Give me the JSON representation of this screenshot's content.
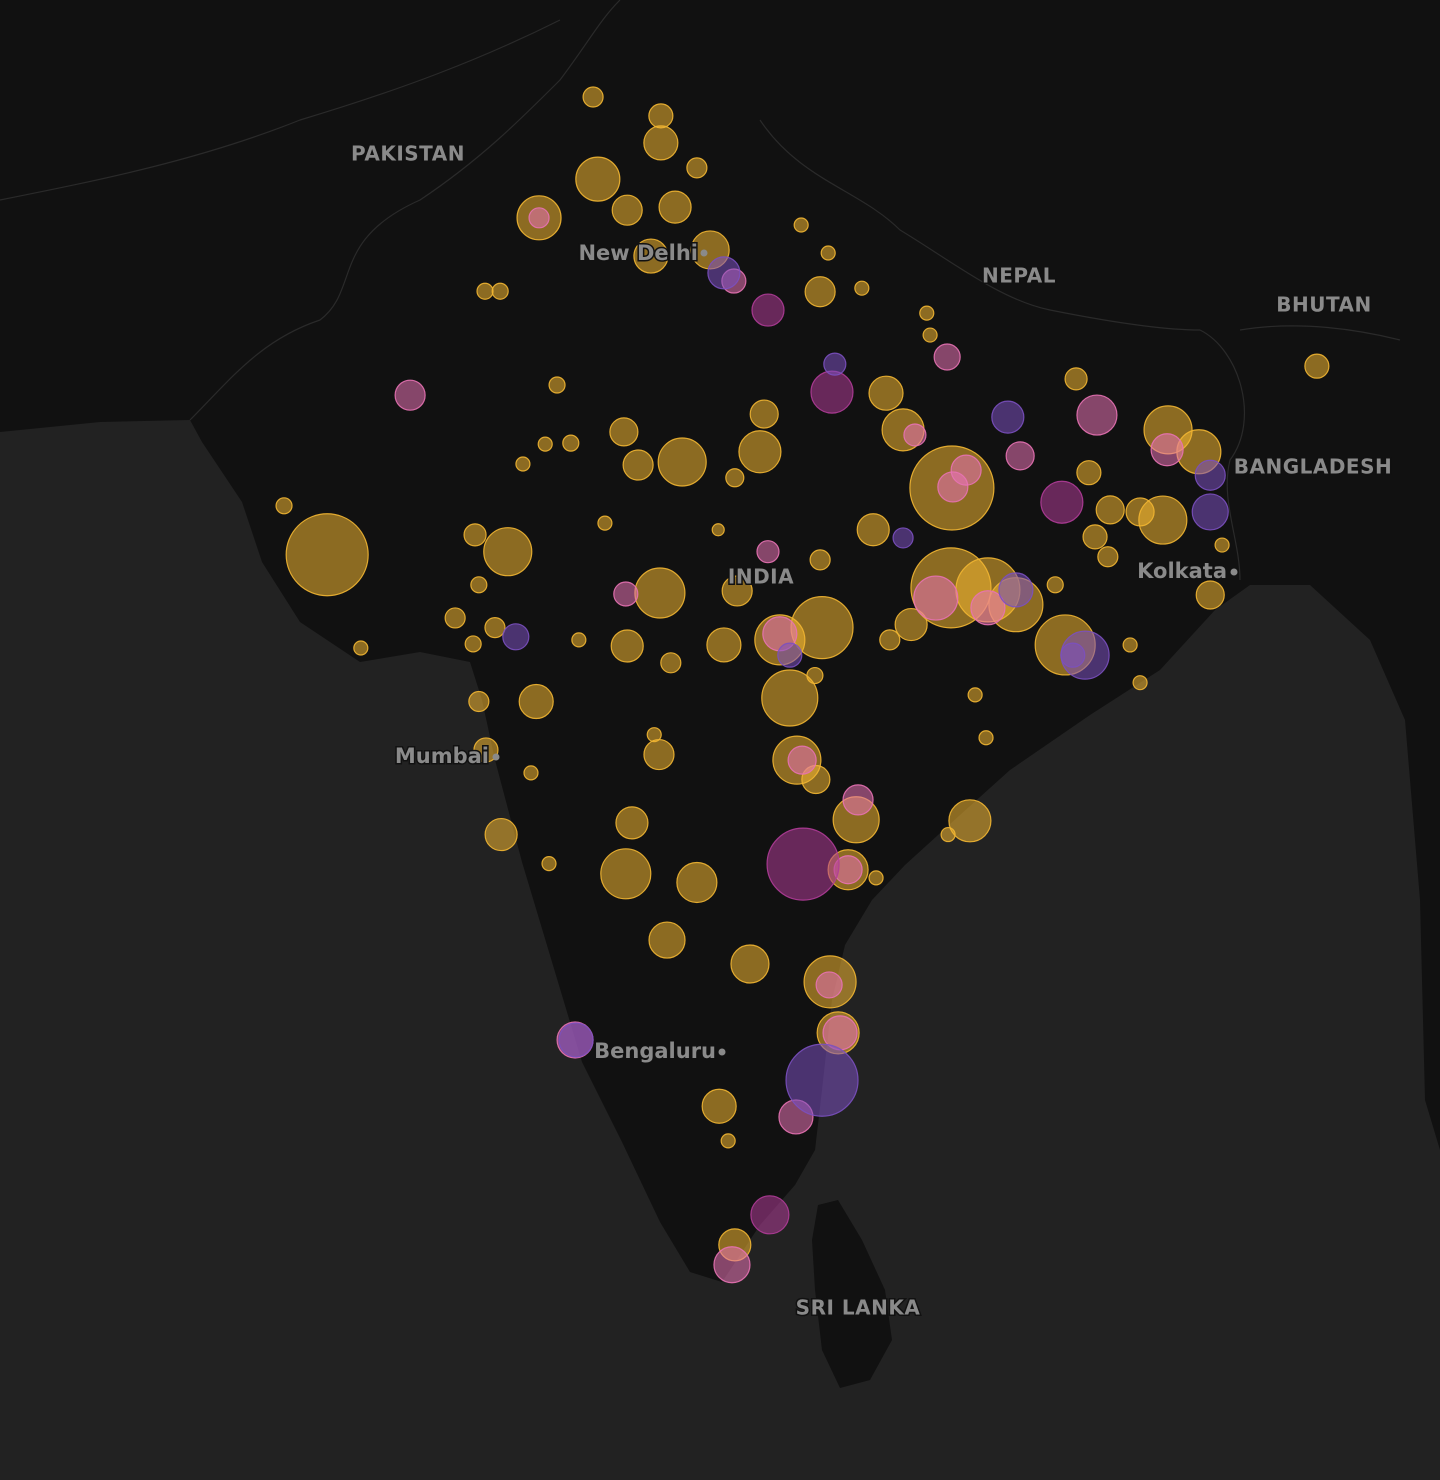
{
  "chart_data": {
    "type": "bubble_map",
    "labels": [
      "PAKISTAN",
      "New Delhi",
      "NEPAL",
      "BHUTAN",
      "BANGLADESH",
      "INDIA",
      "Kolkata",
      "Mumbai",
      "Bengaluru",
      "SRI LANKA"
    ],
    "series": [
      {
        "color": "#f2b632",
        "lon": [
          74.86,
          76.29,
          76.29,
          74.96,
          77.05,
          75.58,
          76.59,
          73.72,
          76.08,
          77.33,
          79.25,
          79.82,
          79.65,
          80.53,
          72.58,
          72.9,
          81.9,
          81.97,
          74.1,
          78.47,
          81.04,
          81.4,
          75.51,
          75.81,
          76.74,
          78.38,
          73.85,
          74.39,
          73.38,
          77.85,
          82.43,
          85.05,
          86.99,
          87.64,
          85.32,
          86.88,
          85.77,
          86.4,
          80.77,
          79.65,
          77.5,
          75.11,
          73.06,
          72.37,
          69.25,
          68.34,
          72.45,
          76.27,
          77.9,
          79.69,
          82.41,
          83.19,
          83.78,
          81.57,
          81.12,
          84.82,
          84.61,
          86.19,
          86.4,
          87.88,
          88.13,
          71.95,
          72.79,
          72.33,
          74.56,
          75.58,
          77.62,
          76.5,
          78.8,
          79.01,
          79.54,
          82.92,
          83.15,
          72.45,
          73.66,
          76.15,
          76.25,
          72.6,
          73.55,
          79.16,
          79.56,
          75.68,
          80.41,
          72.92,
          82.81,
          82.35,
          73.93,
          75.55,
          77.05,
          80.24,
          80.83,
          76.42,
          78.17,
          79.86,
          80.03,
          77.52,
          77.71,
          77.85,
          69.96,
          90.13,
          85.72,
          85.45
        ],
        "lat": [
          31.66,
          31.29,
          30.76,
          30.05,
          30.27,
          29.44,
          29.5,
          29.29,
          28.54,
          28.66,
          29.15,
          28.6,
          27.84,
          27.91,
          27.85,
          27.85,
          27.42,
          26.99,
          26.01,
          25.44,
          25.85,
          25.13,
          25.09,
          24.44,
          24.5,
          24.7,
          24.85,
          24.87,
          24.46,
          24.19,
          23.99,
          26.13,
          25.13,
          24.7,
          24.29,
          23.36,
          23.56,
          23.52,
          23.17,
          22.58,
          23.17,
          23.3,
          22.74,
          23.07,
          22.68,
          23.64,
          22.09,
          21.93,
          21.97,
          21.25,
          22.03,
          21.99,
          21.7,
          21.31,
          21.01,
          20.91,
          22.09,
          20.91,
          20.17,
          21.89,
          22.87,
          21.44,
          21.25,
          20.93,
          21.01,
          20.89,
          20.91,
          20.56,
          21.01,
          19.87,
          20.31,
          19.93,
          19.09,
          19.8,
          19.8,
          19.15,
          18.76,
          18.85,
          18.4,
          18.65,
          18.27,
          17.42,
          17.48,
          17.19,
          17.46,
          17.19,
          16.62,
          16.42,
          16.25,
          16.5,
          16.34,
          15.12,
          14.65,
          14.3,
          13.3,
          11.86,
          11.18,
          9.14,
          20.85,
          26.38,
          22.64,
          23.03
        ],
        "values": [
          100,
          144,
          289,
          484,
          100,
          225,
          256,
          484,
          289,
          361,
          49,
          49,
          225,
          49,
          64,
          64,
          49,
          49,
          64,
          196,
          289,
          441,
          196,
          225,
          576,
          441,
          49,
          64,
          49,
          81,
          1764,
          121,
          576,
          484,
          144,
          576,
          196,
          196,
          256,
          100,
          36,
          49,
          576,
          121,
          1681,
          64,
          64,
          625,
          225,
          961,
          1600,
          1024,
          729,
          256,
          100,
          900,
          64,
          49,
          49,
          196,
          49,
          100,
          100,
          64,
          49,
          256,
          289,
          100,
          625,
          784,
          64,
          49,
          49,
          100,
          289,
          49,
          225,
          144,
          49,
          576,
          196,
          256,
          529,
          256,
          441,
          49,
          49,
          625,
          400,
          400,
          49,
          324,
          361,
          676,
          441,
          289,
          49,
          256,
          49,
          144,
          100,
          144
        ]
      },
      {
        "color": "#e872b4",
        "lon": [
          73.72,
          77.83,
          82.33,
          71.0,
          81.65,
          82.73,
          85.49,
          83.87,
          78.55,
          75.55,
          82.45,
          82.09,
          83.19,
          78.8,
          79.27,
          80.45,
          80.24,
          79.84,
          80.07,
          79.14,
          77.79,
          86.97,
          74.48
        ],
        "lat": [
          29.29,
          28.05,
          26.56,
          25.81,
          25.03,
          24.34,
          25.42,
          24.62,
          22.74,
          21.91,
          24.01,
          21.83,
          21.64,
          21.13,
          18.65,
          17.87,
          16.5,
          14.24,
          13.3,
          11.65,
          8.75,
          24.74,
          13.16
        ],
        "values": [
          100,
          144,
          169,
          225,
          121,
          225,
          400,
          196,
          121,
          144,
          225,
          484,
          289,
          289,
          196,
          225,
          196,
          169,
          289,
          289,
          324,
          256,
          324
        ]
      },
      {
        "color": "#b03c98",
        "lon": [
          78.55,
          79.9,
          84.75,
          79.29,
          78.59
        ],
        "lat": [
          27.48,
          25.87,
          23.71,
          16.61,
          9.73
        ],
        "values": [
          256,
          441,
          441,
          1296,
          361
        ]
      },
      {
        "color": "#7b50c0",
        "lon": [
          77.62,
          79.96,
          83.61,
          87.88,
          85.24,
          84.98,
          79.69,
          79.01,
          73.23,
          83.78,
          81.4,
          74.5,
          87.88
        ],
        "lat": [
          28.21,
          26.42,
          25.38,
          23.52,
          20.71,
          20.71,
          12.37,
          20.71,
          21.07,
          21.99,
          23.01,
          13.16,
          24.24
        ],
        "values": [
          256,
          121,
          256,
          324,
          576,
          144,
          1296,
          144,
          169,
          289,
          100,
          289,
          225
        ]
      }
    ]
  }
}
